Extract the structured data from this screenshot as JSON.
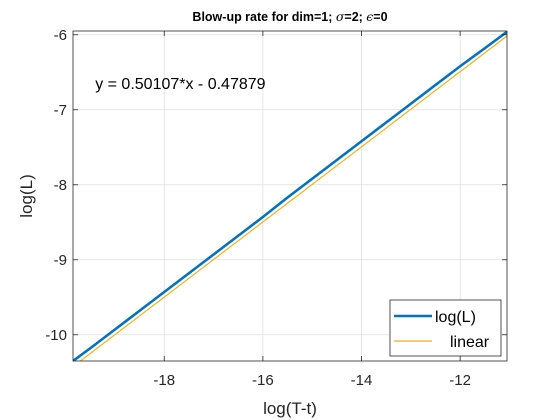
{
  "chart_data": {
    "type": "line",
    "title": {
      "prefix": "Blow-up rate for dim=1; ",
      "sigma_symbol": "σ",
      "sigma_value": "=2; ",
      "epsilon_symbol": "ϵ",
      "epsilon_value": "=0"
    },
    "xlabel": "log(T-t)",
    "ylabel": "log(L)",
    "xlim": [
      -19.85,
      -11.05
    ],
    "ylim": [
      -10.35,
      -5.95
    ],
    "xticks": [
      -18,
      -16,
      -14,
      -12
    ],
    "yticks": [
      -10,
      -9,
      -8,
      -7,
      -6
    ],
    "grid": true,
    "legend_position": "bottom-right",
    "annotation": {
      "text": "y = 0.50107*x - 0.47879",
      "x": -19.4,
      "y": -6.72
    },
    "series": [
      {
        "name": "log(L)",
        "color": "#0072BD",
        "x": [
          -19.85,
          -19.5,
          -19.0,
          -18.5,
          -18.0,
          -17.5,
          -17.0,
          -16.5,
          -16.0,
          -15.5,
          -15.0,
          -14.5,
          -14.0,
          -13.5,
          -13.0,
          -12.5,
          -12.0,
          -11.5,
          -11.05
        ],
        "y": [
          -10.35,
          -10.18,
          -9.93,
          -9.68,
          -9.43,
          -9.18,
          -8.93,
          -8.68,
          -8.43,
          -8.17,
          -7.92,
          -7.67,
          -7.42,
          -7.17,
          -6.92,
          -6.67,
          -6.42,
          -6.18,
          -5.96
        ]
      },
      {
        "name": "linear",
        "color": "#EDB120",
        "x": [
          -19.85,
          -11.05
        ],
        "y": [
          -10.425,
          -6.016
        ]
      }
    ]
  }
}
